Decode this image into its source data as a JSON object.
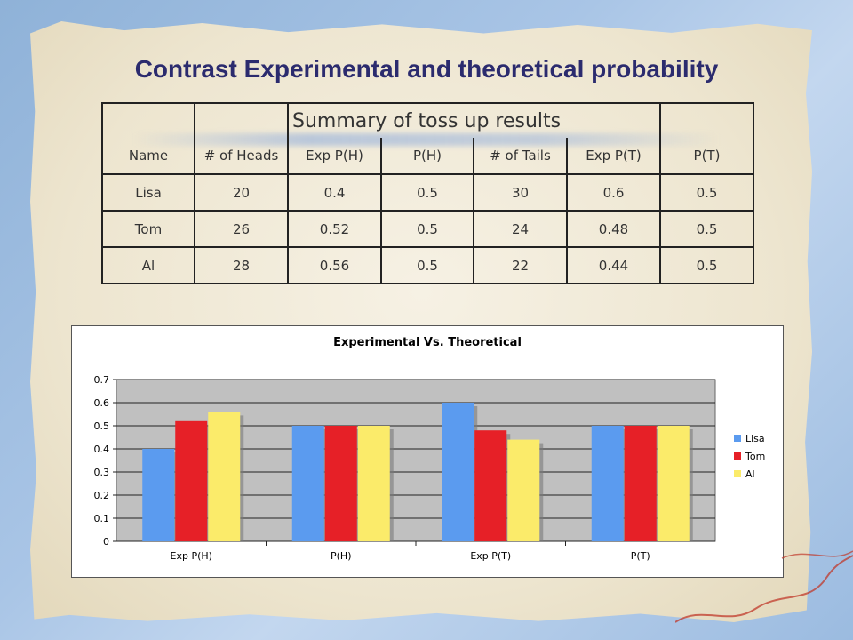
{
  "slide": {
    "title": "Contrast Experimental and theoretical probability"
  },
  "table": {
    "caption": "Summary of toss up results",
    "headers": [
      "Name",
      "# of Heads",
      "Exp P(H)",
      "P(H)",
      "# of Tails",
      "Exp P(T)",
      "P(T)"
    ],
    "rows": [
      [
        "Lisa",
        "20",
        "0.4",
        "0.5",
        "30",
        "0.6",
        "0.5"
      ],
      [
        "Tom",
        "26",
        "0.52",
        "0.5",
        "24",
        "0.48",
        "0.5"
      ],
      [
        "Al",
        "28",
        "0.56",
        "0.5",
        "22",
        "0.44",
        "0.5"
      ]
    ]
  },
  "chart_data": {
    "type": "bar",
    "title": "Experimental Vs. Theoretical",
    "categories": [
      "Exp P(H)",
      "P(H)",
      "Exp P(T)",
      "P(T)"
    ],
    "series": [
      {
        "name": "Lisa",
        "color": "#5b9bef",
        "values": [
          0.4,
          0.5,
          0.6,
          0.5
        ]
      },
      {
        "name": "Tom",
        "color": "#e62027",
        "values": [
          0.52,
          0.5,
          0.48,
          0.5
        ]
      },
      {
        "name": "Al",
        "color": "#fbeb6a",
        "values": [
          0.56,
          0.5,
          0.44,
          0.5
        ]
      }
    ],
    "ylim": [
      0,
      0.7
    ],
    "yticks": [
      "0",
      "0.1",
      "0.2",
      "0.3",
      "0.4",
      "0.5",
      "0.6",
      "0.7"
    ],
    "xlabel": "",
    "ylabel": "",
    "grid": true,
    "legend": "right",
    "plot_background": "#c0c0c0"
  }
}
